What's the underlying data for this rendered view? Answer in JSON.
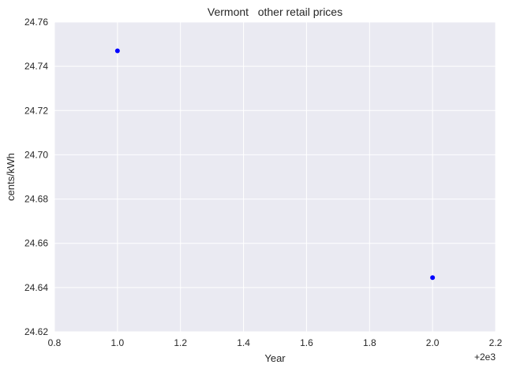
{
  "chart_data": {
    "type": "scatter",
    "title": "Vermont   other retail prices",
    "xlabel": "Year",
    "ylabel": "cents/kWh",
    "x_offset_label": "+2e3",
    "xlim": [
      0.8,
      2.2
    ],
    "ylim": [
      24.62,
      24.76
    ],
    "x_ticks": [
      "0.8",
      "1.0",
      "1.2",
      "1.4",
      "1.6",
      "1.8",
      "2.0",
      "2.2"
    ],
    "y_ticks": [
      "24.62",
      "24.64",
      "24.66",
      "24.68",
      "24.70",
      "24.72",
      "24.74",
      "24.76"
    ],
    "grid": true,
    "series": [
      {
        "x": [
          1.0,
          2.0
        ],
        "y": [
          24.747,
          24.6445
        ]
      }
    ],
    "colors": {
      "plot_bg": "#EAEAF2",
      "grid": "#ffffff",
      "marker": "#0000FF"
    }
  }
}
